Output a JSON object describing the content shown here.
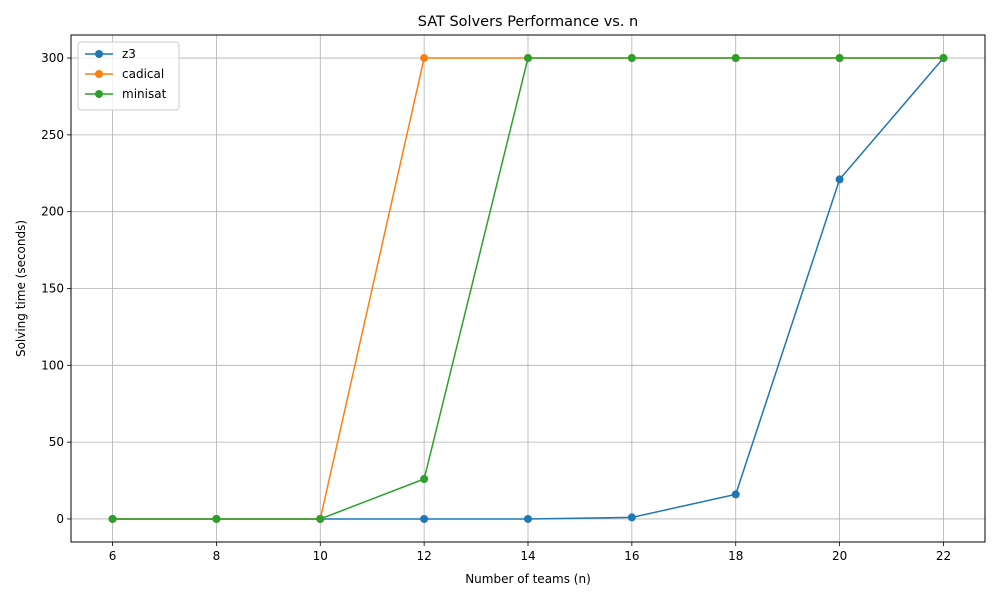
{
  "chart_data": {
    "type": "line",
    "title": "SAT Solvers Performance vs. n",
    "xlabel": "Number of teams (n)",
    "ylabel": "Solving time (seconds)",
    "x": [
      6,
      8,
      10,
      12,
      14,
      16,
      18,
      20,
      22
    ],
    "xticks": [
      "6",
      "8",
      "10",
      "12",
      "14",
      "16",
      "18",
      "20",
      "22"
    ],
    "yticks": [
      "0",
      "50",
      "100",
      "150",
      "200",
      "250",
      "300"
    ],
    "xlim": [
      5.2,
      22.8
    ],
    "ylim": [
      -15,
      315
    ],
    "grid": true,
    "legend_position": "top-left",
    "series": [
      {
        "name": "z3",
        "color": "#1f77b4",
        "values": [
          0,
          0,
          0,
          0,
          0,
          1,
          16,
          221,
          300
        ]
      },
      {
        "name": "cadical",
        "color": "#ff7f0e",
        "values": [
          0,
          0,
          0,
          300,
          300,
          300,
          300,
          300,
          300
        ]
      },
      {
        "name": "minisat",
        "color": "#2ca02c",
        "values": [
          0,
          0,
          0,
          26,
          300,
          300,
          300,
          300,
          300
        ]
      }
    ]
  }
}
